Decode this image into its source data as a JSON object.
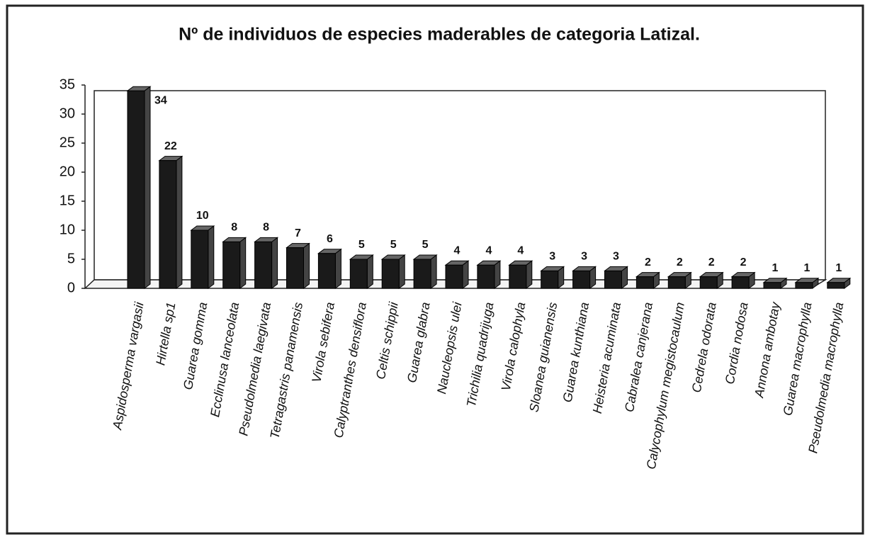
{
  "chart_data": {
    "type": "bar",
    "title": "Nº de individuos de especies maderables de categoria Latizal.",
    "categories": [
      "Aspidosperma vargasii",
      "Hirtella sp1",
      "Guarea gomma",
      "Ecclinusa lanceolata",
      "Pseudolmedia laegivata",
      "Tetragastris panamensis",
      "Virola sebifera",
      "Calyptranthes densiflora",
      "Celtis schippii",
      "Guarea glabra",
      "Naucleopsis ulei",
      "Trichilia quadrijuga",
      "Virola calophyla",
      "Sloanea guianensis",
      "Guarea kunthiana",
      "Heisteria acuminata",
      "Cabralea canjerana",
      "Calycophylum megistocaulum",
      "Cedrela odorata",
      "Cordia nodosa",
      "Annona ambotay",
      "Guarea macrophylla",
      "Pseudolmedia macrophylla"
    ],
    "values": [
      34,
      22,
      10,
      8,
      8,
      7,
      6,
      5,
      5,
      5,
      4,
      4,
      4,
      3,
      3,
      3,
      2,
      2,
      2,
      2,
      1,
      1,
      1
    ],
    "color": "#1a1a1a",
    "ylim": [
      0,
      35
    ],
    "yticks": [
      0,
      5,
      10,
      15,
      20,
      25,
      30,
      35
    ],
    "grid": false
  }
}
